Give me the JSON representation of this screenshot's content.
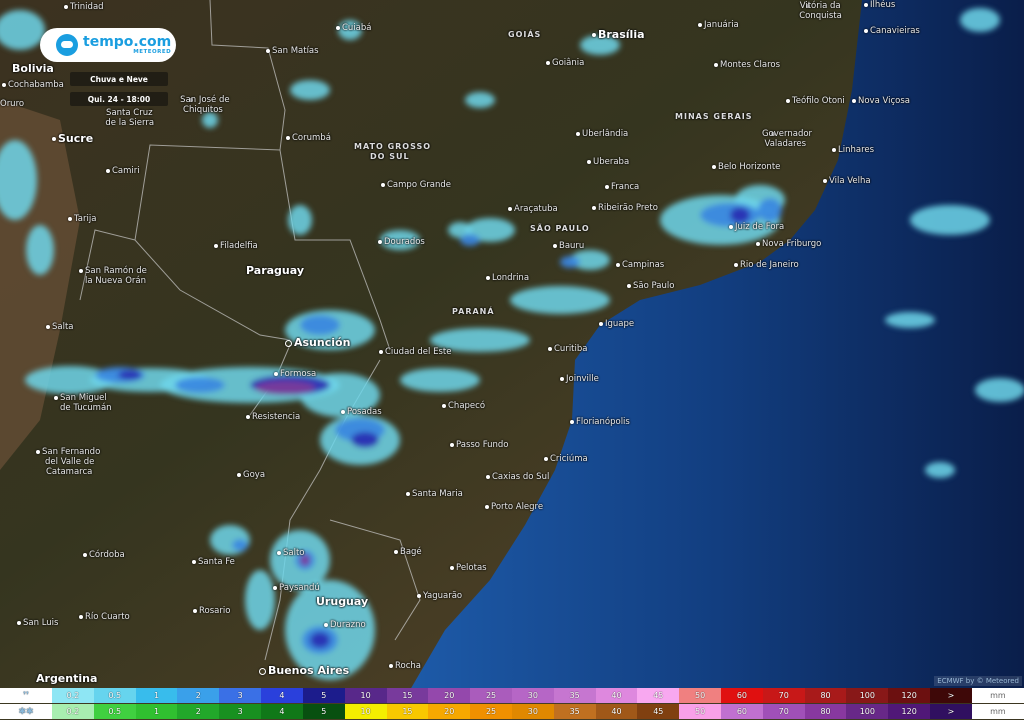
{
  "brand": {
    "name": "tempo.com",
    "sub": "METEORED",
    "color": "#1a9ee0"
  },
  "layer": "Chuva e Neve",
  "time": "Qui. 24 - 18:00",
  "watermark": "ECMWF by © Meteored",
  "labels": [
    "Trinidad",
    "Cuiabá",
    "San Matías",
    "GOIÁS",
    "Brasília",
    "Januária",
    "Vitória da",
    "Conquista",
    "Ilhéus",
    "Canavieiras",
    "Goiânia",
    "Montes Claros",
    "Bolivia",
    "Cochabamba",
    "Oruro",
    "Santa Cruz",
    "de la Sierra",
    "San José de",
    "Chiquitos",
    "Corumbá",
    "Uberlândia",
    "MINAS GERAIS",
    "Teófilo Otoni",
    "Nova Viçosa",
    "Governador",
    "Valadares",
    "Linhares",
    "MATO GROSSO",
    "DO SUL",
    "Sucre",
    "Uberaba",
    "Camiri",
    "Belo Horizonte",
    "Franca",
    "Campo Grande",
    "Vila Velha",
    "Araçatuba",
    "Ribeirão Preto",
    "Juiz de Fora",
    "SÃO PAULO",
    "Tarija",
    "Bauru",
    "Nova Friburgo",
    "Filadelfia",
    "Dourados",
    "San Ramón de",
    "la Nueva Orán",
    "Paraguay",
    "Londrina",
    "Campinas",
    "Rio de Janeiro",
    "São Paulo",
    "Iguape",
    "PARANÁ",
    "Salta",
    "Asunción",
    "Curitiba",
    "Ciudad del Este",
    "Formosa",
    "Joinville",
    "San Miguel",
    "de Tucumán",
    "Resistencia",
    "Posadas",
    "Chapecó",
    "Florianópolis",
    "Passo Fundo",
    "San Fernando",
    "del Valle de",
    "Catamarca",
    "Goya",
    "Criciúma",
    "Caxias do Sul",
    "Santa Maria",
    "Porto Alegre",
    "Córdoba",
    "Bagé",
    "Santa Fe",
    "Salto",
    "Pelotas",
    "Paysandú",
    "Uruguay",
    "Rosario",
    "Yaguarão",
    "San Luis",
    "Río Cuarto",
    "Durazno",
    "Buenos Aires",
    "Rocha",
    "Argentina"
  ],
  "legend": {
    "unit": "mm",
    "rain_icon": "raindrops-icon",
    "snow_icon": "snowflakes-icon",
    "steps": [
      "0.2",
      "0.5",
      "1",
      "2",
      "3",
      "4",
      "5",
      "10",
      "15",
      "20",
      "25",
      "30",
      "35",
      "40",
      "45",
      "50",
      "60",
      "70",
      "80",
      "100",
      "120",
      ">"
    ],
    "rain_colors": [
      "#8ee6f4",
      "#66d4ee",
      "#38bcec",
      "#3aa0ea",
      "#3a70e6",
      "#2a40dc",
      "#1c1c8c",
      "#58288a",
      "#783a9c",
      "#9448ac",
      "#aa5cbc",
      "#b666c6",
      "#c676d0",
      "#de88de",
      "#f8a8f0",
      "#f08080",
      "#e01010",
      "#c81818",
      "#a81a1a",
      "#881818",
      "#6c1010",
      "#3e0808"
    ],
    "snow_colors": [
      "#a8eeb0",
      "#40d040",
      "#30c030",
      "#22a82a",
      "#189020",
      "#107818",
      "#085010",
      "#f4ee00",
      "#f8c800",
      "#f6a800",
      "#f09000",
      "#e08800",
      "#c07020",
      "#a05818",
      "#804010",
      "#f8a0e8",
      "#c070d0",
      "#a050b8",
      "#8838a0",
      "#682888",
      "#501878",
      "#301060"
    ]
  }
}
